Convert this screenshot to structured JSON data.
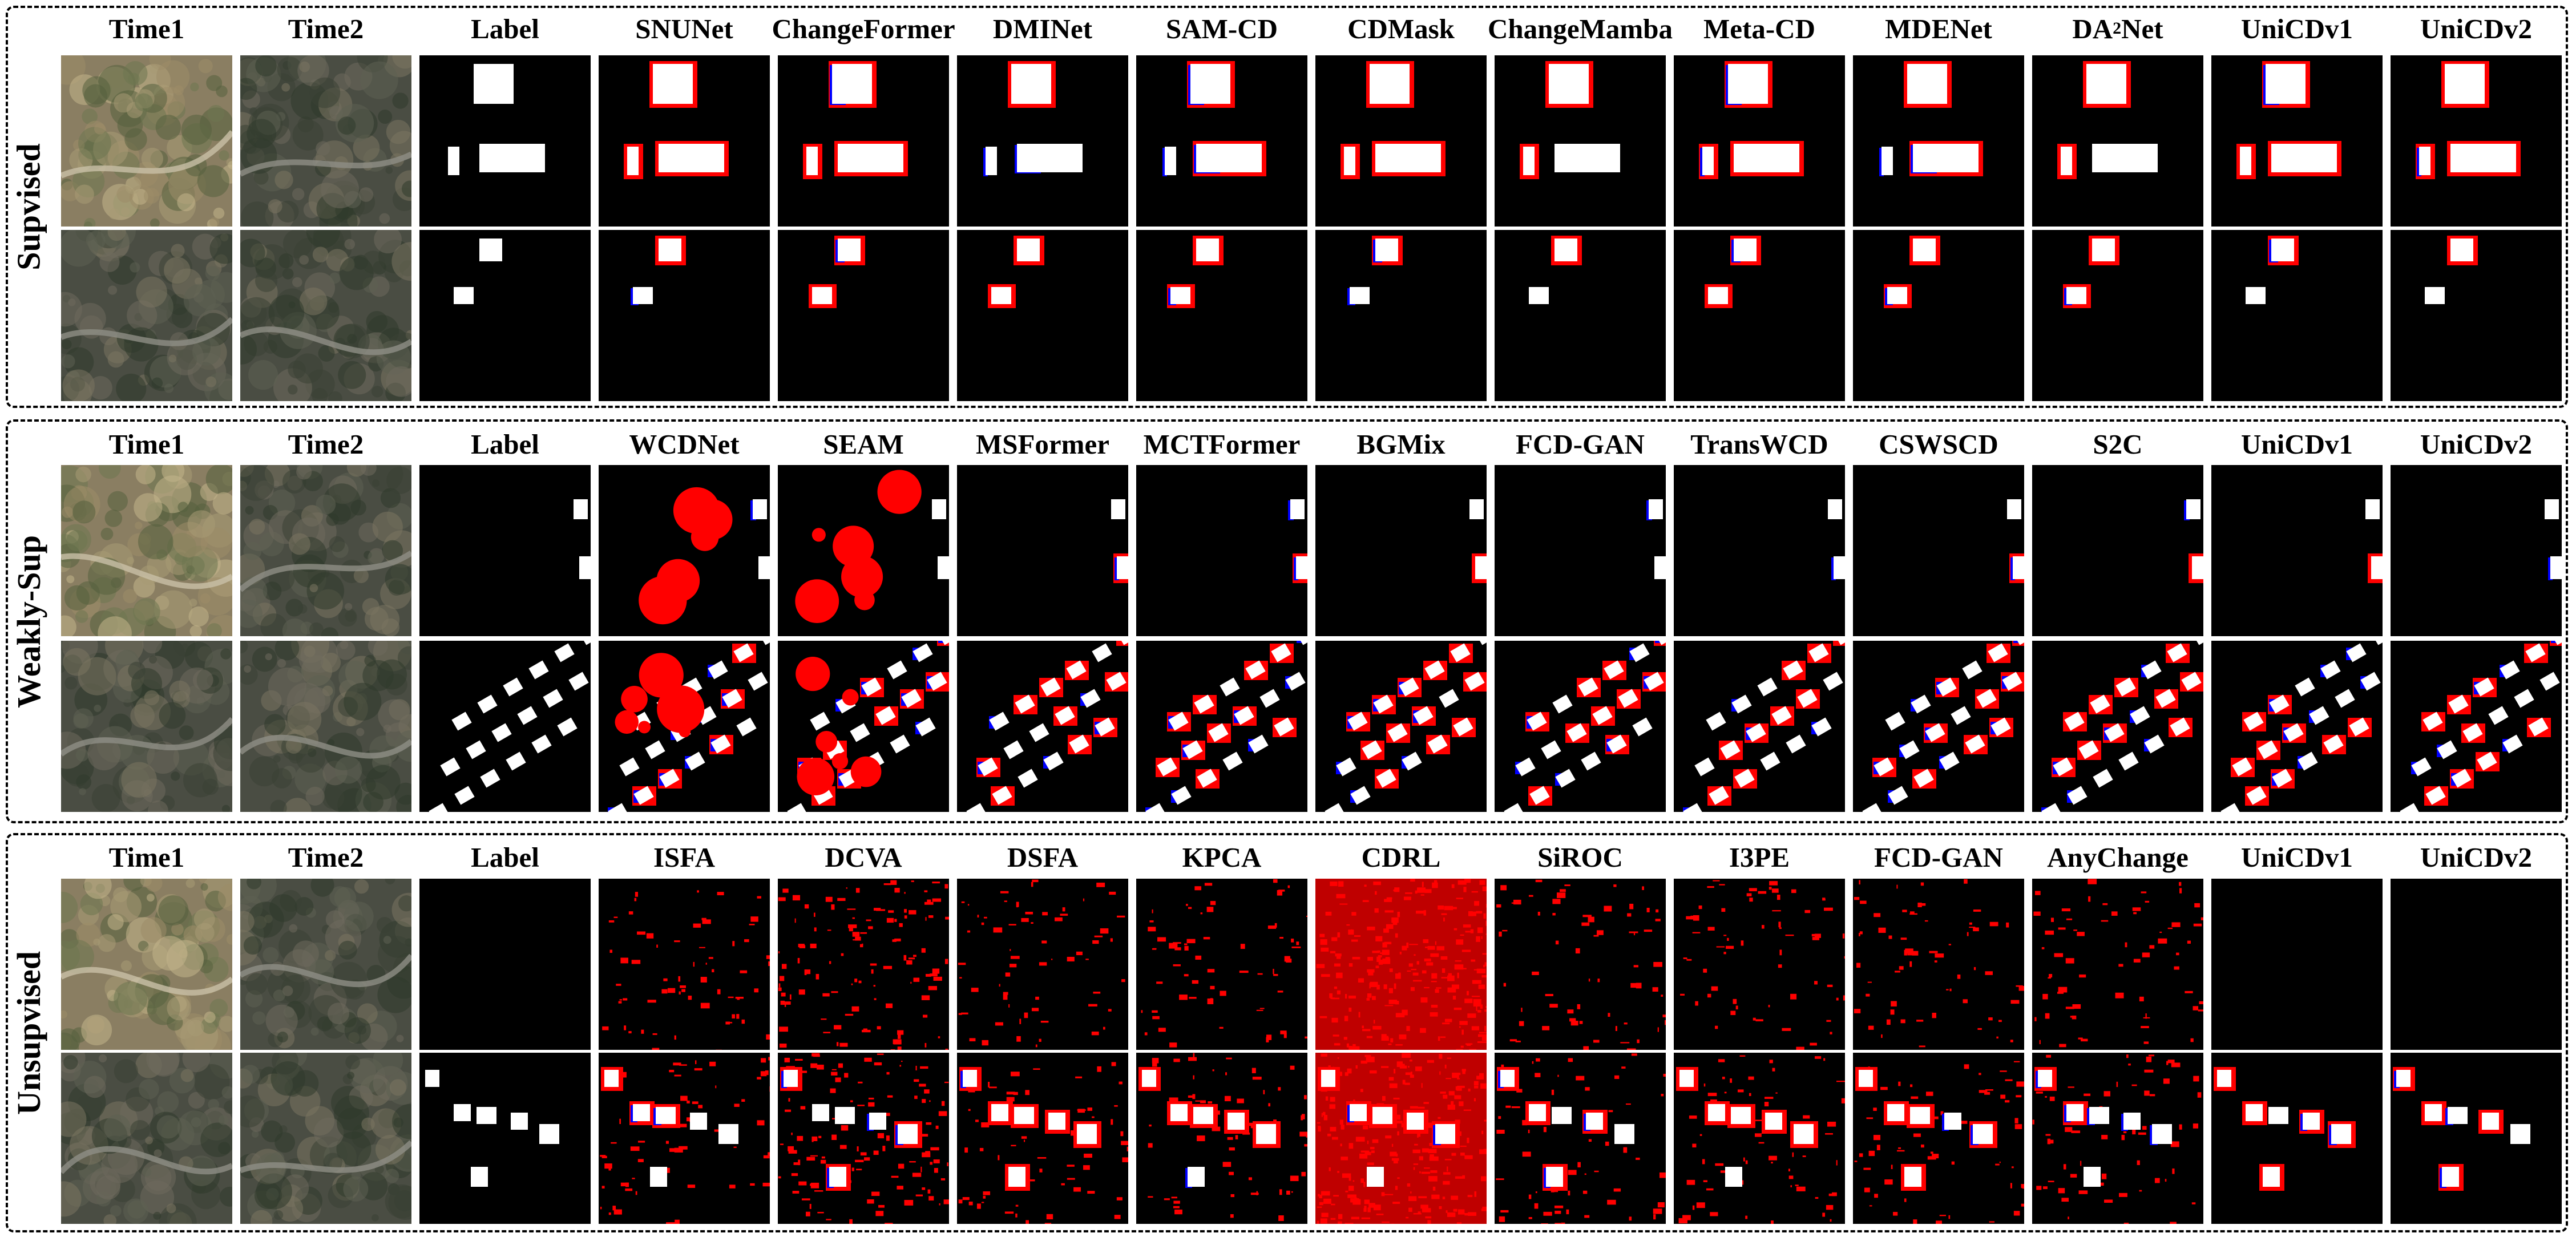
{
  "figure": {
    "sections": [
      {
        "id": "supervised",
        "label": "Supvised",
        "columns": [
          "Time1",
          "Time2",
          "Label",
          "SNUNet",
          "ChangeFormer",
          "DMINet",
          "SAM-CD",
          "CDMask",
          "ChangeMamba",
          "Meta-CD",
          "MDENet",
          "DA²Net",
          "UniCDv1",
          "UniCDv2"
        ]
      },
      {
        "id": "weakly",
        "label": "Weakly-Sup",
        "columns": [
          "Time1",
          "Time2",
          "Label",
          "WCDNet",
          "SEAM",
          "MSFormer",
          "MCTFormer",
          "BGMix",
          "FCD-GAN",
          "TransWCD",
          "CSWSCD",
          "S2C",
          "UniCDv1",
          "UniCDv2"
        ]
      },
      {
        "id": "unsupervised",
        "label": "Unsupvised",
        "columns": [
          "Time1",
          "Time2",
          "Label",
          "ISFA",
          "DCVA",
          "DSFA",
          "KPCA",
          "CDRL",
          "SiROC",
          "I3PE",
          "FCD-GAN",
          "AnyChange",
          "UniCDv1",
          "UniCDv2"
        ]
      }
    ],
    "colors": {
      "true_positive": "#ffffff",
      "false_positive": "#ff0000",
      "false_negative": "#0000ff",
      "true_negative": "#000000"
    }
  }
}
